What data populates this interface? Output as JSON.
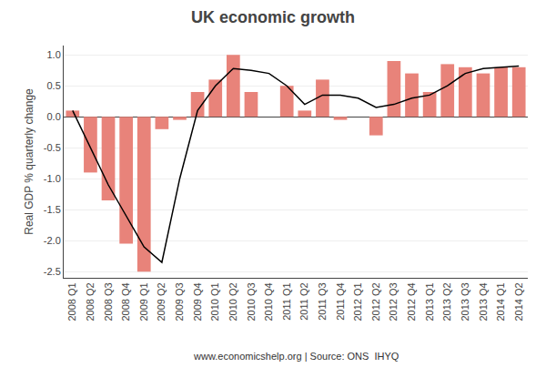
{
  "chart_data": {
    "type": "bar",
    "title": "UK economic growth",
    "ylabel": "Real GDP % quarterly change",
    "annotations": [
      "www.economicshelp.org | Source: ONS  IHYQ"
    ],
    "categories": [
      "2008 Q1",
      "2008 Q2",
      "2008 Q3",
      "2008 Q4",
      "2009 Q1",
      "2009 Q2",
      "2009 Q3",
      "2009 Q4",
      "2010 Q1",
      "2010 Q2",
      "2010 Q3",
      "2010 Q4",
      "2011 Q1",
      "2011 Q2",
      "2011 Q3",
      "2011 Q4",
      "2012 Q1",
      "2012 Q2",
      "2012 Q3",
      "2012 Q4",
      "2013 Q1",
      "2013 Q2",
      "2013 Q3",
      "2013 Q4",
      "2014 Q1",
      "2014 Q2"
    ],
    "series": [
      {
        "type": "bar",
        "color": "#e8837a",
        "values": [
          0.1,
          -0.9,
          -1.35,
          -2.05,
          -2.5,
          -0.2,
          -0.05,
          0.4,
          0.6,
          1.0,
          0.4,
          0.0,
          0.5,
          0.1,
          0.6,
          -0.05,
          0.0,
          -0.3,
          0.9,
          0.7,
          0.4,
          0.85,
          0.8,
          0.7,
          0.8,
          0.8
        ]
      },
      {
        "type": "line",
        "color": "#000000",
        "values": [
          0.1,
          -0.5,
          -1.1,
          -1.6,
          -2.1,
          -2.35,
          -1.0,
          0.1,
          0.5,
          0.78,
          0.75,
          0.7,
          0.5,
          0.2,
          0.35,
          0.35,
          0.3,
          0.15,
          0.2,
          0.3,
          0.35,
          0.5,
          0.7,
          0.78,
          0.8,
          0.82
        ]
      }
    ],
    "ylim": [
      -2.6,
      1.15
    ],
    "yticks": [
      -2.5,
      {
        "value": -2,
        "label": "-2.0"
      },
      -1.5,
      {
        "value": -1,
        "label": "-1.0"
      },
      -0.5,
      {
        "value": 0,
        "label": "0.0"
      },
      0.5,
      {
        "value": 1,
        "label": "1.0"
      }
    ],
    "grid": true
  }
}
